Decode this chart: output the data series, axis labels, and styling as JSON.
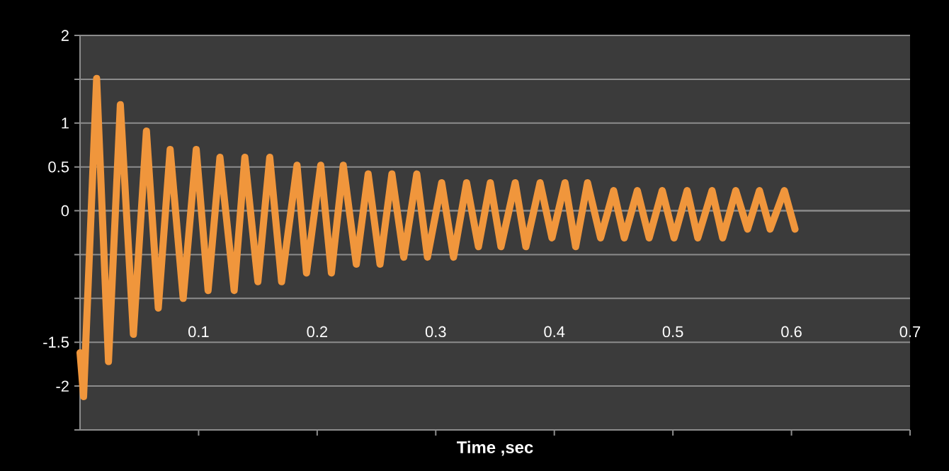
{
  "chart_data": {
    "type": "line",
    "xlabel": "Time ,sec",
    "color": "#f0963c",
    "grid": "y",
    "xlim": [
      0,
      0.7
    ],
    "ylim": [
      -2.5,
      2
    ],
    "xticks": [
      0.1,
      0.2,
      0.3,
      0.4,
      0.5,
      0.6,
      0.7
    ],
    "yticks": [
      {
        "value": -2.5,
        "label": null
      },
      -2,
      -1.5,
      {
        "value": -1,
        "label": null
      },
      {
        "value": -0.5,
        "label": null
      },
      0,
      0.5,
      1,
      {
        "value": 1.5,
        "label": null
      },
      2
    ],
    "x": [
      0,
      0.003,
      0.014,
      0.024,
      0.034,
      0.045,
      0.056,
      0.066,
      0.076,
      0.087,
      0.098,
      0.108,
      0.118,
      0.13,
      0.139,
      0.15,
      0.16,
      0.17,
      0.183,
      0.191,
      0.203,
      0.212,
      0.222,
      0.233,
      0.243,
      0.253,
      0.263,
      0.273,
      0.284,
      0.293,
      0.305,
      0.315,
      0.326,
      0.336,
      0.346,
      0.355,
      0.367,
      0.376,
      0.388,
      0.398,
      0.409,
      0.418,
      0.428,
      0.439,
      0.45,
      0.459,
      0.47,
      0.48,
      0.491,
      0.501,
      0.512,
      0.521,
      0.533,
      0.542,
      0.553,
      0.563,
      0.573,
      0.582,
      0.594,
      0.603
    ],
    "values": [
      -1.62,
      -2.12,
      1.51,
      -1.72,
      1.21,
      -1.41,
      0.91,
      -1.11,
      0.7,
      -1.0,
      0.7,
      -0.91,
      0.61,
      -0.91,
      0.61,
      -0.81,
      0.61,
      -0.81,
      0.52,
      -0.71,
      0.52,
      -0.71,
      0.52,
      -0.61,
      0.42,
      -0.61,
      0.42,
      -0.53,
      0.42,
      -0.53,
      0.32,
      -0.53,
      0.32,
      -0.41,
      0.32,
      -0.41,
      0.32,
      -0.41,
      0.32,
      -0.31,
      0.32,
      -0.41,
      0.32,
      -0.31,
      0.23,
      -0.31,
      0.23,
      -0.31,
      0.23,
      -0.31,
      0.23,
      -0.31,
      0.23,
      -0.31,
      0.23,
      -0.21,
      0.23,
      -0.21,
      0.23,
      -0.21
    ]
  }
}
